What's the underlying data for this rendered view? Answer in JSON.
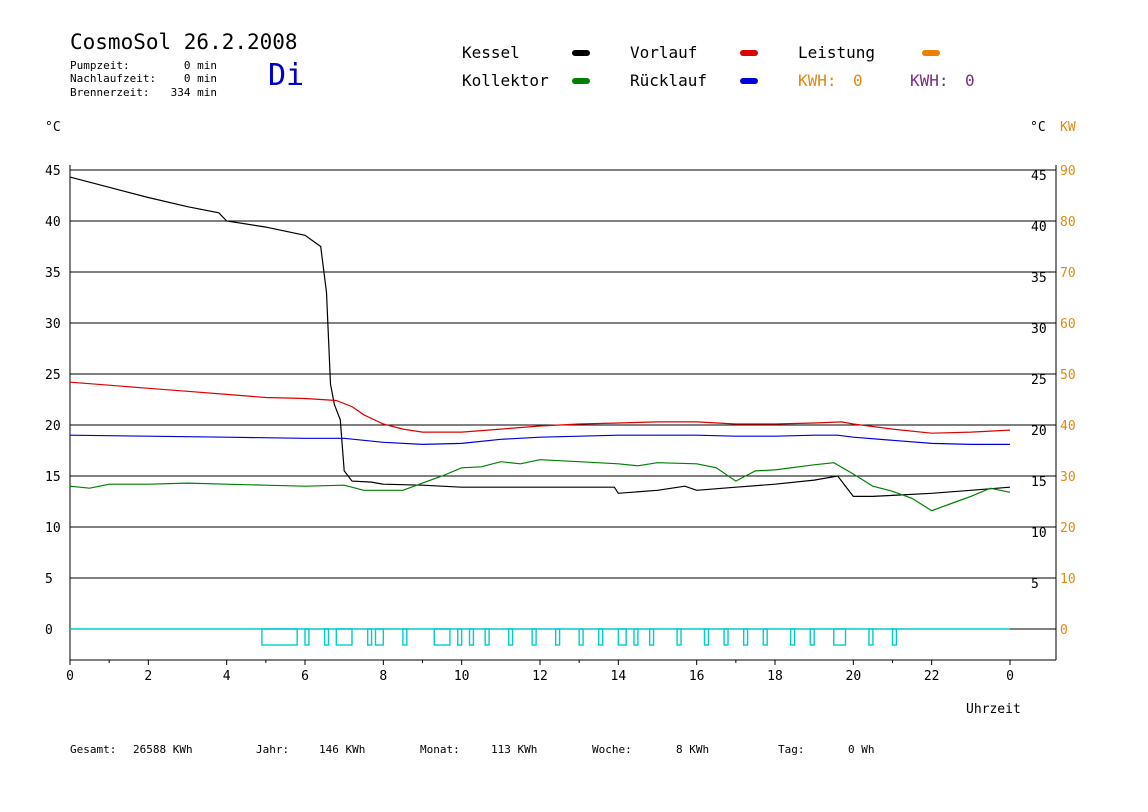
{
  "header": {
    "title": "CosmoSol 26.2.2008",
    "day": "Di",
    "stats": [
      {
        "label": "Pumpzeit:",
        "value": "0 min"
      },
      {
        "label": "Nachlaufzeit:",
        "value": "0 min"
      },
      {
        "label": "Brennerzeit:",
        "value": "334 min"
      }
    ]
  },
  "legend": {
    "kessel": {
      "label": "Kessel",
      "color": "#000000"
    },
    "vorlauf": {
      "label": "Vorlauf",
      "color": "#dd0000"
    },
    "leistung": {
      "label": "Leistung",
      "color": "#ee8000"
    },
    "kollektor": {
      "label": "Kollektor",
      "color": "#008000"
    },
    "ruecklauf": {
      "label": "Rücklauf",
      "color": "#0000dd"
    },
    "kwh1": {
      "label": "KWH:",
      "value": "0",
      "color": "#e08a10"
    },
    "kwh2": {
      "label": "KWH:",
      "value": "0",
      "color": "#7a2a8a"
    }
  },
  "axes": {
    "left_unit": "°C",
    "right_unit": "°C",
    "right_unit2": "KW",
    "xlabel": "Uhrzeit"
  },
  "footer": {
    "gesamt": {
      "label": "Gesamt:",
      "value": "26588 KWh"
    },
    "jahr": {
      "label": "Jahr:",
      "value": "146 KWh"
    },
    "monat": {
      "label": "Monat:",
      "value": "113 KWh"
    },
    "woche": {
      "label": "Woche:",
      "value": "8 KWh"
    },
    "tag": {
      "label": "Tag:",
      "value": "0 Wh"
    }
  },
  "chart_data": {
    "type": "line",
    "title": "CosmoSol 26.2.2008",
    "xlabel": "Uhrzeit",
    "ylabel": "°C",
    "ylabel_right": "KW",
    "xlim": [
      0,
      24
    ],
    "ylim": [
      0,
      45
    ],
    "ylim_right": [
      0,
      90
    ],
    "x_ticks": [
      "0",
      "2",
      "4",
      "6",
      "8",
      "10",
      "12",
      "14",
      "16",
      "18",
      "20",
      "22",
      "0"
    ],
    "y_ticks": [
      0,
      5,
      10,
      15,
      20,
      25,
      30,
      35,
      40,
      45
    ],
    "y_ticks_right_kw": [
      0,
      10,
      20,
      30,
      40,
      50,
      60,
      70,
      80,
      90
    ],
    "grid": true,
    "legend_position": "top",
    "series": [
      {
        "name": "Kessel",
        "color": "#000000",
        "points": [
          [
            0,
            44.3
          ],
          [
            1,
            43.3
          ],
          [
            2,
            42.3
          ],
          [
            3,
            41.4
          ],
          [
            3.8,
            40.8
          ],
          [
            4,
            40
          ],
          [
            5,
            39.4
          ],
          [
            6,
            38.6
          ],
          [
            6.4,
            37.5
          ],
          [
            6.55,
            33
          ],
          [
            6.65,
            24
          ],
          [
            6.75,
            22
          ],
          [
            6.9,
            20.5
          ],
          [
            7.0,
            15.5
          ],
          [
            7.2,
            14.5
          ],
          [
            7.7,
            14.4
          ],
          [
            8,
            14.2
          ],
          [
            9,
            14.1
          ],
          [
            10,
            13.9
          ],
          [
            12,
            13.9
          ],
          [
            13,
            13.9
          ],
          [
            13.9,
            13.9
          ],
          [
            14,
            13.3
          ],
          [
            15,
            13.6
          ],
          [
            15.7,
            14
          ],
          [
            16,
            13.6
          ],
          [
            17,
            13.9
          ],
          [
            18,
            14.2
          ],
          [
            19,
            14.6
          ],
          [
            19.6,
            15
          ],
          [
            19.8,
            14
          ],
          [
            20,
            13
          ],
          [
            20.5,
            13
          ],
          [
            21,
            13.1
          ],
          [
            22,
            13.3
          ],
          [
            23,
            13.6
          ],
          [
            24,
            13.9
          ]
        ]
      },
      {
        "name": "Vorlauf",
        "color": "#dd0000",
        "points": [
          [
            0,
            24.2
          ],
          [
            1,
            23.9
          ],
          [
            2,
            23.6
          ],
          [
            3,
            23.3
          ],
          [
            4,
            23
          ],
          [
            5,
            22.7
          ],
          [
            6,
            22.6
          ],
          [
            6.8,
            22.4
          ],
          [
            7.2,
            21.8
          ],
          [
            7.5,
            21
          ],
          [
            8,
            20.1
          ],
          [
            8.5,
            19.6
          ],
          [
            9,
            19.3
          ],
          [
            10,
            19.3
          ],
          [
            11,
            19.6
          ],
          [
            12,
            19.9
          ],
          [
            13,
            20.1
          ],
          [
            14,
            20.2
          ],
          [
            15,
            20.3
          ],
          [
            16,
            20.3
          ],
          [
            17,
            20.1
          ],
          [
            18,
            20.1
          ],
          [
            19,
            20.2
          ],
          [
            19.7,
            20.3
          ],
          [
            20,
            20.1
          ],
          [
            21,
            19.6
          ],
          [
            22,
            19.2
          ],
          [
            23,
            19.3
          ],
          [
            24,
            19.5
          ]
        ]
      },
      {
        "name": "Rücklauf",
        "color": "#0000dd",
        "points": [
          [
            0,
            19
          ],
          [
            2,
            18.9
          ],
          [
            4,
            18.8
          ],
          [
            6,
            18.7
          ],
          [
            7,
            18.7
          ],
          [
            8,
            18.3
          ],
          [
            9,
            18.1
          ],
          [
            10,
            18.2
          ],
          [
            11,
            18.6
          ],
          [
            12,
            18.8
          ],
          [
            13,
            18.9
          ],
          [
            14,
            19
          ],
          [
            15,
            19
          ],
          [
            16,
            19
          ],
          [
            17,
            18.9
          ],
          [
            18,
            18.9
          ],
          [
            19,
            19
          ],
          [
            19.6,
            19
          ],
          [
            20,
            18.8
          ],
          [
            21,
            18.5
          ],
          [
            22,
            18.2
          ],
          [
            23,
            18.1
          ],
          [
            24,
            18.1
          ]
        ]
      },
      {
        "name": "Kollektor",
        "color": "#008000",
        "points": [
          [
            0,
            14
          ],
          [
            0.5,
            13.8
          ],
          [
            1,
            14.2
          ],
          [
            2,
            14.2
          ],
          [
            3,
            14.3
          ],
          [
            4,
            14.2
          ],
          [
            5,
            14.1
          ],
          [
            6,
            14
          ],
          [
            7,
            14.1
          ],
          [
            7.5,
            13.6
          ],
          [
            8,
            13.6
          ],
          [
            8.5,
            13.6
          ],
          [
            9,
            14.3
          ],
          [
            9.5,
            15
          ],
          [
            10,
            15.8
          ],
          [
            10.5,
            15.9
          ],
          [
            11,
            16.4
          ],
          [
            11.5,
            16.2
          ],
          [
            12,
            16.6
          ],
          [
            12.5,
            16.5
          ],
          [
            13,
            16.4
          ],
          [
            14,
            16.2
          ],
          [
            14.5,
            16
          ],
          [
            15,
            16.3
          ],
          [
            16,
            16.2
          ],
          [
            16.5,
            15.8
          ],
          [
            17,
            14.5
          ],
          [
            17.5,
            15.5
          ],
          [
            18,
            15.6
          ],
          [
            19,
            16.1
          ],
          [
            19.5,
            16.3
          ],
          [
            20,
            15.2
          ],
          [
            20.5,
            14
          ],
          [
            21,
            13.5
          ],
          [
            21.5,
            12.8
          ],
          [
            22,
            11.6
          ],
          [
            22.5,
            12.3
          ],
          [
            23,
            13
          ],
          [
            23.5,
            13.8
          ],
          [
            24,
            13.4
          ]
        ]
      },
      {
        "name": "Leistung",
        "color": "#ee8000",
        "points": [
          [
            0,
            0
          ],
          [
            24,
            0
          ]
        ]
      }
    ],
    "pump_signal": {
      "color": "#00cccc",
      "pulses": [
        [
          4.9,
          5.8
        ],
        [
          6.0,
          6.1
        ],
        [
          6.5,
          6.6
        ],
        [
          6.8,
          7.2
        ],
        [
          7.6,
          7.7
        ],
        [
          7.8,
          8.0
        ],
        [
          8.5,
          8.6
        ],
        [
          9.3,
          9.7
        ],
        [
          9.9,
          10.0
        ],
        [
          10.2,
          10.3
        ],
        [
          10.6,
          10.7
        ],
        [
          11.2,
          11.3
        ],
        [
          11.8,
          11.9
        ],
        [
          12.4,
          12.5
        ],
        [
          13.0,
          13.1
        ],
        [
          13.5,
          13.6
        ],
        [
          14.0,
          14.2
        ],
        [
          14.4,
          14.5
        ],
        [
          14.8,
          14.9
        ],
        [
          15.5,
          15.6
        ],
        [
          16.2,
          16.3
        ],
        [
          16.7,
          16.8
        ],
        [
          17.2,
          17.3
        ],
        [
          17.7,
          17.8
        ],
        [
          18.4,
          18.5
        ],
        [
          18.9,
          19.0
        ],
        [
          19.5,
          19.8
        ],
        [
          20.4,
          20.5
        ],
        [
          21.0,
          21.1
        ]
      ]
    }
  }
}
